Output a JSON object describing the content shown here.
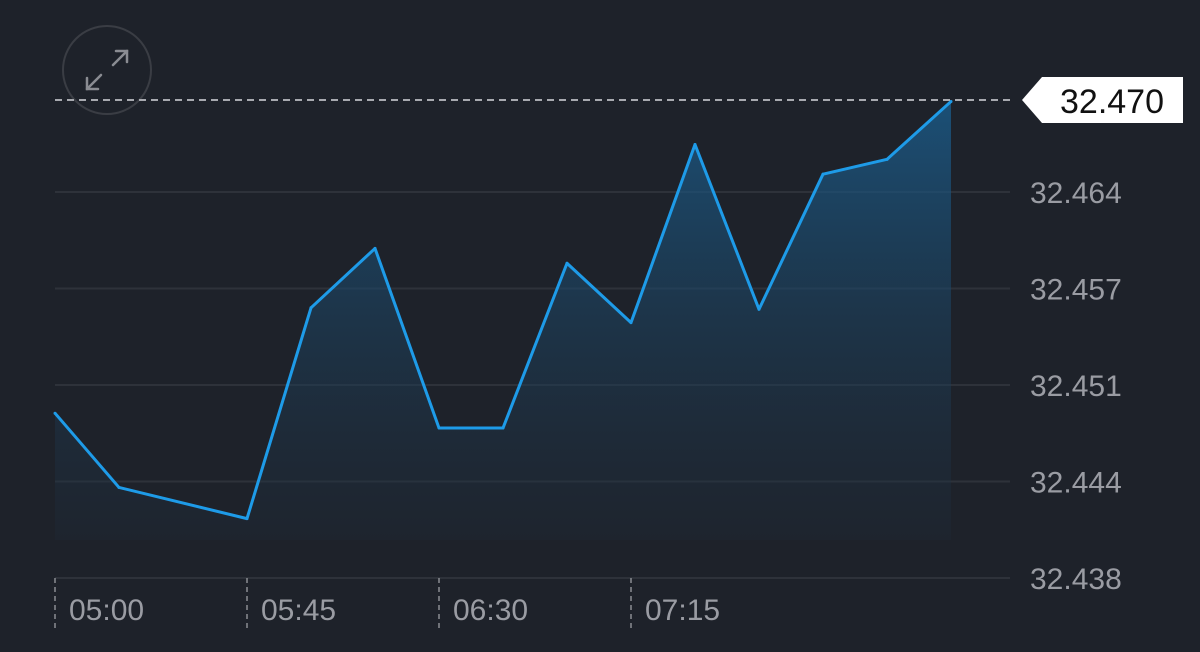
{
  "chart_data": {
    "type": "area",
    "x": [
      "05:00",
      "05:15",
      "05:45",
      "06:00",
      "06:15",
      "06:30",
      "06:45",
      "07:00",
      "07:15",
      "07:30",
      "07:45",
      "08:00",
      "08:15",
      "08:30"
    ],
    "values": [
      32.4491,
      32.4441,
      32.442,
      32.4562,
      32.4602,
      32.4481,
      32.4481,
      32.4592,
      32.4552,
      32.4672,
      32.4561,
      32.4652,
      32.4662,
      32.4701
    ],
    "ylim": [
      32.438,
      32.4705
    ],
    "y_ticks": [
      "32.438",
      "32.444",
      "32.451",
      "32.457",
      "32.464"
    ],
    "y_tick_values": [
      32.438,
      32.4445,
      32.451,
      32.4575,
      32.464
    ],
    "x_ticks": [
      "05:00",
      "05:45",
      "06:30",
      "07:15"
    ],
    "current_value_label": "32.470",
    "current_value": 32.47,
    "grid": true,
    "colors": {
      "line": "#1e9be8",
      "background": "#1e222a",
      "grid": "#2e323a",
      "label": "#9a9ca3"
    }
  },
  "controls": {
    "expand_icon": "expand-arrows-icon"
  }
}
